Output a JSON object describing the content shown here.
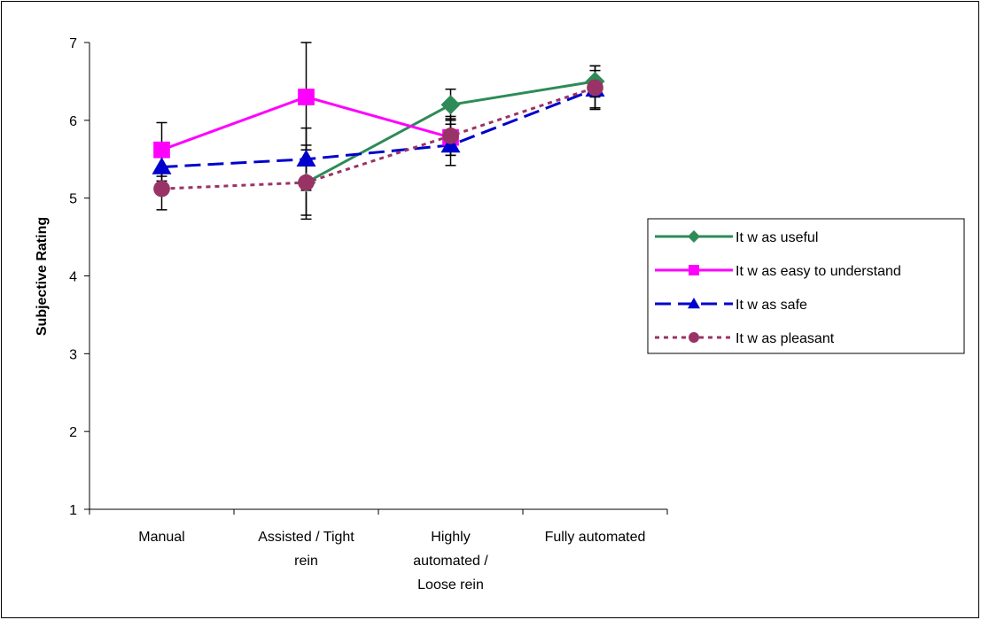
{
  "chart_data": {
    "type": "line",
    "title": "",
    "xlabel": "",
    "ylabel": "Subjective Rating",
    "ylim": [
      1,
      7
    ],
    "yticks": [
      1,
      2,
      3,
      4,
      5,
      6,
      7
    ],
    "grid": false,
    "legend_position": "right",
    "categories": [
      [
        "Manual"
      ],
      [
        "Assisted / Tight",
        "rein"
      ],
      [
        "Highly",
        "automated /",
        "Loose rein"
      ],
      [
        "Fully automated"
      ]
    ],
    "series": [
      {
        "name": "It w as useful",
        "color": "#2e8b57",
        "marker": "diamond",
        "dash": "solid",
        "values": [
          null,
          5.2,
          6.2,
          6.5
        ],
        "err_low": [
          null,
          4.78,
          6.0,
          6.3
        ],
        "err_high": [
          null,
          5.62,
          6.4,
          6.7
        ]
      },
      {
        "name": "It w as easy to understand",
        "color": "#ff00ff",
        "marker": "square",
        "dash": "solid",
        "values": [
          5.62,
          6.3,
          5.78,
          null
        ],
        "err_low": [
          5.28,
          5.62,
          5.55,
          null
        ],
        "err_high": [
          5.97,
          7.0,
          6.02,
          null
        ]
      },
      {
        "name": "It w as safe",
        "color": "#0000cc",
        "marker": "triangle",
        "dash": "dashed",
        "values": [
          5.4,
          5.5,
          5.68,
          6.4
        ],
        "err_low": [
          5.22,
          5.1,
          5.42,
          6.16
        ],
        "err_high": [
          5.6,
          5.9,
          5.95,
          6.64
        ]
      },
      {
        "name": "It w as pleasant",
        "color": "#993366",
        "marker": "circle",
        "dash": "dotted",
        "values": [
          5.12,
          5.2,
          5.8,
          6.42
        ],
        "err_low": [
          4.85,
          4.73,
          5.55,
          6.14
        ],
        "err_high": [
          5.4,
          5.68,
          6.05,
          6.7
        ]
      }
    ]
  }
}
